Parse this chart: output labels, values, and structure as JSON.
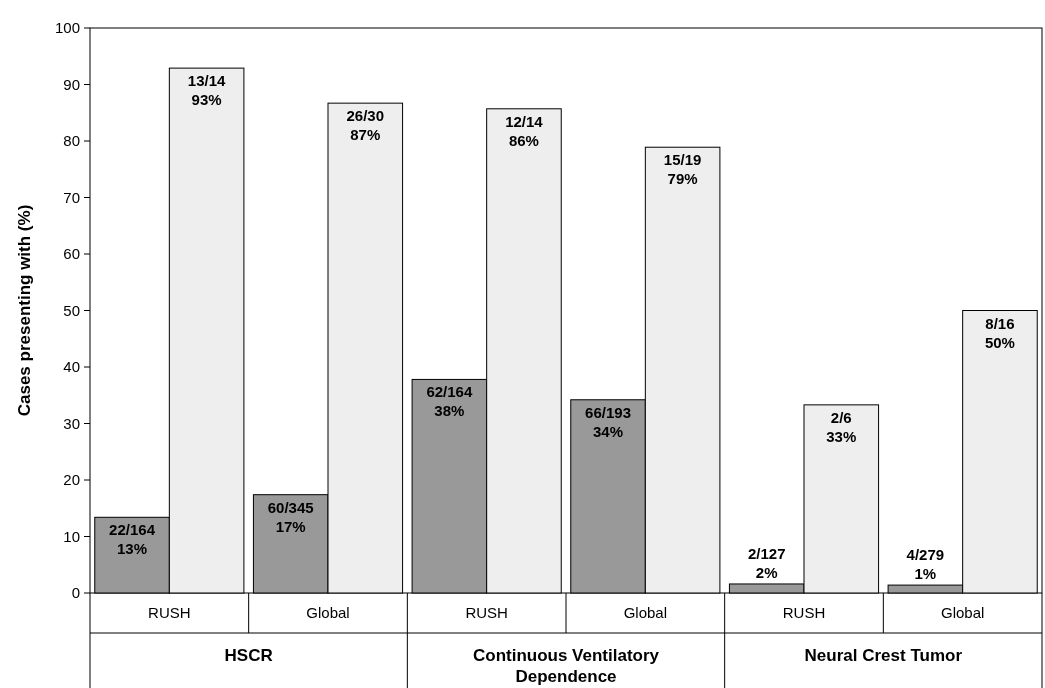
{
  "chart_data": {
    "type": "bar",
    "ylabel": "Cases presenting with (%)",
    "categories": [
      "RUSH",
      "Global",
      "RUSH",
      "Global",
      "RUSH",
      "Global"
    ],
    "annotations": [
      "HSCR",
      "Continuous Ventilatory Dependence",
      "Neural Crest Tumor"
    ],
    "series": [
      {
        "color": "#999999",
        "values": [
          13.4,
          17.4,
          37.8,
          34.2,
          1.6,
          1.4
        ],
        "value_labels": [
          "22/164\n13%",
          "60/345\n17%",
          "62/164\n38%",
          "66/193\n34%",
          "2/127\n2%",
          "4/279\n1%"
        ]
      },
      {
        "color": "#eeeeee",
        "values": [
          92.9,
          86.7,
          85.7,
          78.9,
          33.3,
          50
        ],
        "value_labels": [
          "13/14\n93%",
          "26/30\n87%",
          "12/14\n86%",
          "15/19\n79%",
          "2/6\n33%",
          "8/16\n50%"
        ]
      }
    ],
    "ylim": [
      0,
      100
    ],
    "yticks": [
      0,
      10,
      20,
      30,
      40,
      50,
      60,
      70,
      80,
      90,
      100
    ],
    "grid": false
  }
}
